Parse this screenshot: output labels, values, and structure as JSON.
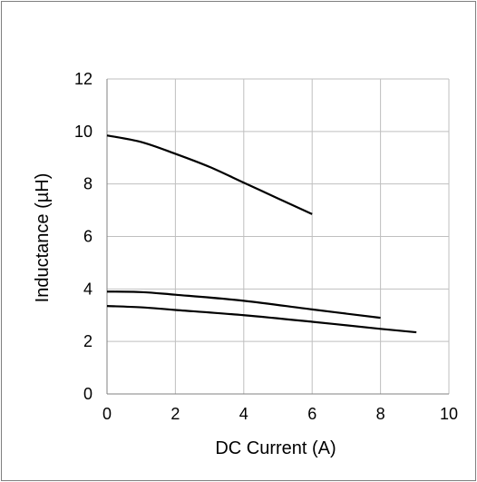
{
  "chart_data": {
    "type": "line",
    "title": "",
    "xlabel": "DC Current (A)",
    "ylabel": "Inductance (µH)",
    "xlim": [
      0,
      10
    ],
    "ylim": [
      0,
      12
    ],
    "x_ticks": [
      "0",
      "2",
      "4",
      "6",
      "8",
      "10"
    ],
    "y_ticks": [
      "0",
      "2",
      "4",
      "6",
      "8",
      "10",
      "12"
    ],
    "grid": true,
    "legend": "none",
    "line_color": "#000000",
    "grid_color": "#bfbfbf",
    "series": [
      {
        "x": [
          0,
          1,
          2,
          3,
          4,
          5,
          6
        ],
        "y": [
          9.85,
          9.6,
          9.15,
          8.65,
          8.05,
          7.45,
          6.85
        ]
      },
      {
        "x": [
          0,
          1,
          2,
          4,
          6,
          8
        ],
        "y": [
          3.9,
          3.88,
          3.78,
          3.55,
          3.22,
          2.9
        ]
      },
      {
        "x": [
          0,
          1,
          2,
          4,
          6,
          8,
          9.05
        ],
        "y": [
          3.35,
          3.3,
          3.2,
          3.0,
          2.75,
          2.48,
          2.35
        ]
      }
    ]
  }
}
